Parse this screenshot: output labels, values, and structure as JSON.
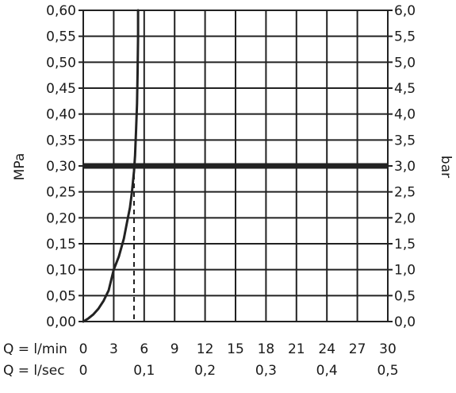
{
  "chart_data": {
    "type": "line",
    "title": "",
    "ylabel_left": "MPa",
    "ylabel_right": "bar",
    "ylim": [
      0,
      0.6
    ],
    "xlim_lpm": [
      0,
      30
    ],
    "y_ticks_left": [
      "0,00",
      "0,05",
      "0,10",
      "0,15",
      "0,20",
      "0,25",
      "0,30",
      "0,35",
      "0,40",
      "0,45",
      "0,50",
      "0,55",
      "0,60"
    ],
    "y_ticks_right": [
      "0,0",
      "0,5",
      "1,0",
      "1,5",
      "2,0",
      "2,5",
      "3,0",
      "3,5",
      "4,0",
      "4,5",
      "5,0",
      "5,5",
      "6,0"
    ],
    "x_axis_lpm": {
      "label": "Q = l/min",
      "ticks": [
        0,
        3,
        6,
        9,
        12,
        15,
        18,
        21,
        24,
        27,
        30
      ],
      "tick_labels": [
        "0",
        "3",
        "6",
        "9",
        "12",
        "15",
        "18",
        "21",
        "24",
        "27",
        "30"
      ]
    },
    "x_axis_lps": {
      "label": "Q = l/sec",
      "ticks": [
        0,
        0.1,
        0.2,
        0.3,
        0.4,
        0.5
      ],
      "tick_labels": [
        "0",
        "0,1",
        "0,2",
        "0,3",
        "0,4",
        "0,5"
      ]
    },
    "series": [
      {
        "x": [
          0,
          0.5,
          1,
          1.5,
          2,
          2.5,
          3,
          3.5,
          4,
          4.3,
          4.6,
          4.8,
          5.0,
          5.1,
          5.2,
          5.3,
          5.35,
          5.4,
          5.4
        ],
        "y": [
          0,
          0.006,
          0.014,
          0.025,
          0.04,
          0.06,
          0.1,
          0.125,
          0.16,
          0.19,
          0.22,
          0.25,
          0.29,
          0.32,
          0.37,
          0.42,
          0.48,
          0.55,
          0.6
        ]
      }
    ],
    "reference_line": {
      "y": 0.3
    },
    "reference_drop": {
      "x": 5,
      "y": 0.3
    }
  }
}
